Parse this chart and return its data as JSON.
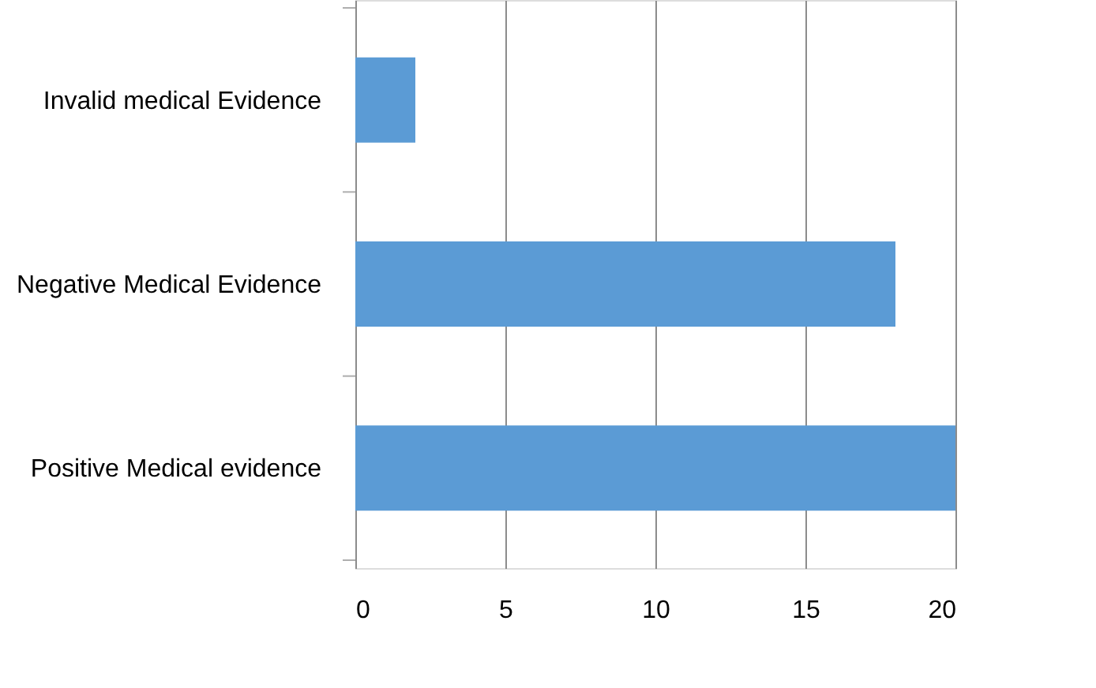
{
  "chart_data": {
    "type": "bar",
    "orientation": "horizontal",
    "categories": [
      "Invalid medical Evidence",
      "Negative Medical Evidence",
      "Positive Medical evidence"
    ],
    "values": [
      2,
      18,
      20
    ],
    "color": "#5b9bd5",
    "xlim": [
      0,
      20
    ],
    "xticks": [
      0,
      5,
      10,
      15,
      20
    ],
    "grid": "x"
  }
}
